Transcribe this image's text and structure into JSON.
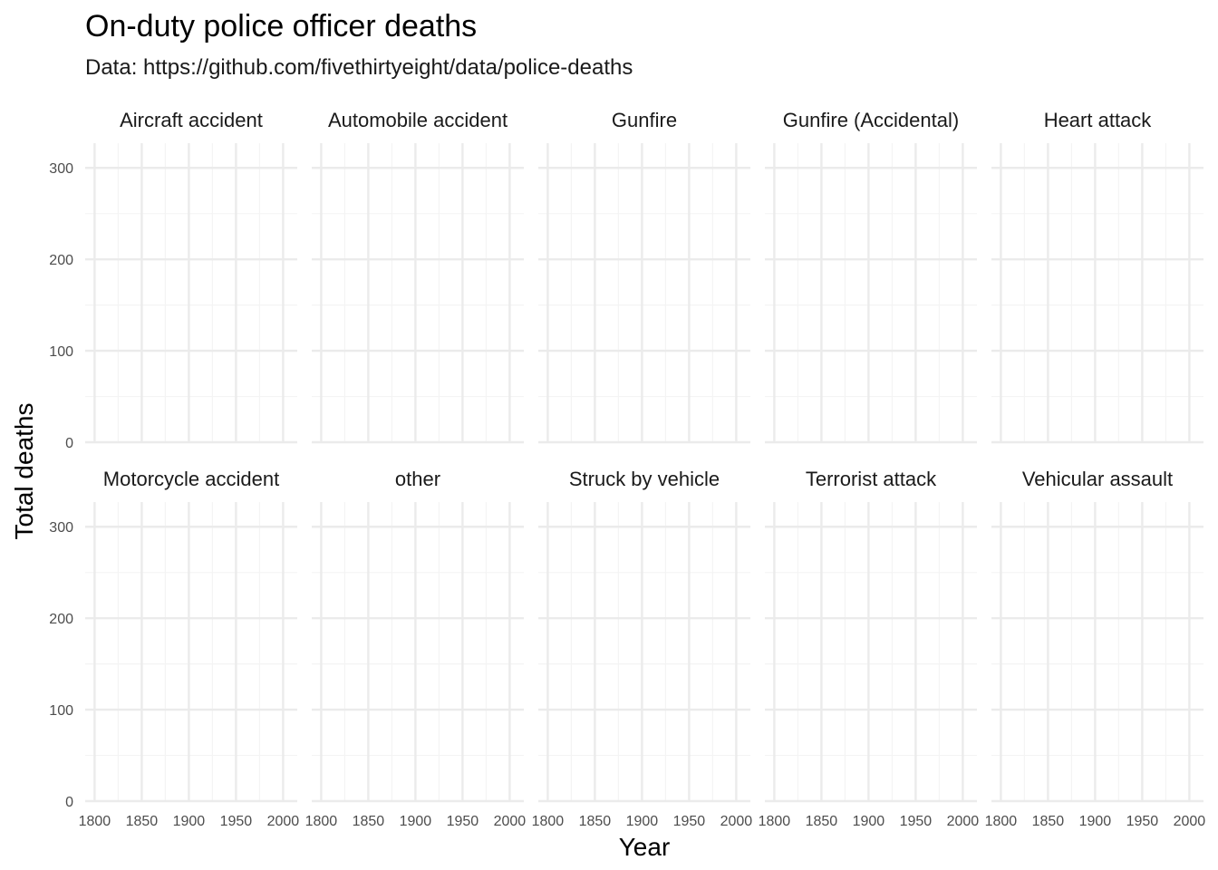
{
  "chart_data": {
    "type": "line",
    "title": "On-duty police officer deaths",
    "subtitle": "Data: https://github.com/fivethirtyeight/data/police-deaths",
    "xlabel": "Year",
    "ylabel": "Total deaths",
    "xlim": [
      1790,
      2015
    ],
    "ylim": [
      0,
      327
    ],
    "x_ticks": [
      1800,
      1850,
      1900,
      1950,
      2000
    ],
    "x_minor_ticks": [
      1825,
      1875,
      1925,
      1975
    ],
    "y_ticks": [
      0,
      100,
      200,
      300
    ],
    "y_minor_ticks": [
      50,
      150,
      250
    ],
    "grid": true,
    "facets": [
      {
        "label": "Aircraft accident",
        "series": []
      },
      {
        "label": "Automobile accident",
        "series": []
      },
      {
        "label": "Gunfire",
        "series": []
      },
      {
        "label": "Gunfire (Accidental)",
        "series": []
      },
      {
        "label": "Heart attack",
        "series": []
      },
      {
        "label": "Motorcycle accident",
        "series": []
      },
      {
        "label": "other",
        "series": []
      },
      {
        "label": "Struck by vehicle",
        "series": []
      },
      {
        "label": "Terrorist attack",
        "series": []
      },
      {
        "label": "Vehicular assault",
        "series": []
      }
    ],
    "colors": {
      "grid_major": "#ebebeb",
      "grid_minor": "#f4f4f4",
      "text": "#4d4d4d"
    }
  }
}
